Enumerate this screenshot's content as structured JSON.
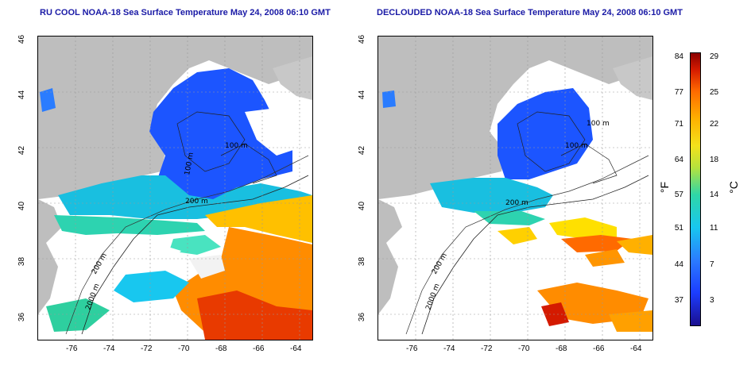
{
  "left_map": {
    "title": "RU COOL NOAA-18 Sea Surface Temperature May 24, 2008 06:10 GMT",
    "contour_labels": [
      "200 m",
      "100 m",
      "100 m",
      "200 m",
      "2000 m"
    ]
  },
  "right_map": {
    "title": "DECLOUDED NOAA-18 Sea Surface Temperature May 24, 2008 06:10 GMT",
    "contour_labels": [
      "100 m",
      "100 m",
      "200 m",
      "200 m",
      "2000 m"
    ]
  },
  "axes": {
    "lat_ticks": [
      "46",
      "44",
      "42",
      "40",
      "38",
      "36"
    ],
    "lon_ticks": [
      "-76",
      "-74",
      "-72",
      "-70",
      "-68",
      "-66",
      "-64"
    ]
  },
  "colorbar": {
    "fahrenheit_label": "°F",
    "celsius_label": "°C",
    "fahrenheit_ticks": [
      "84",
      "77",
      "71",
      "64",
      "57",
      "51",
      "44",
      "37"
    ],
    "celsius_ticks": [
      "29",
      "25",
      "22",
      "18",
      "14",
      "11",
      "7",
      "3"
    ]
  },
  "colors": {
    "land": "#bebebe",
    "cold": "#1c3dff",
    "cool": "#18c7ef",
    "warm": "#ff8c00",
    "hot": "#d41a00",
    "title": "#1a1aa6"
  }
}
